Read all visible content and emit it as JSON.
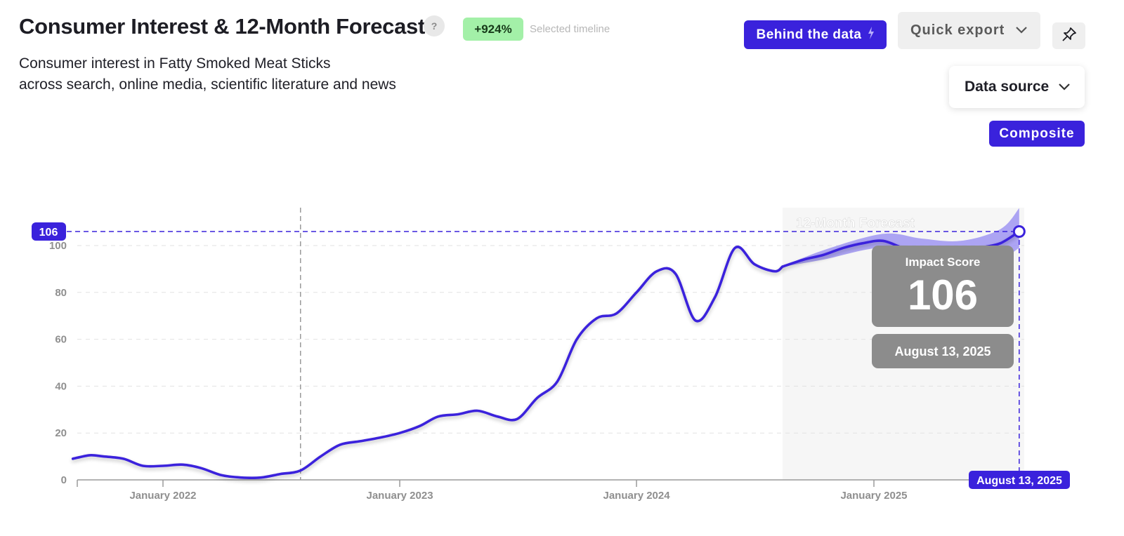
{
  "header": {
    "title": "Consumer Interest & 12-Month Forecast",
    "help": "?",
    "badge": "+924%",
    "badge_note": "Selected timeline",
    "subtitle_line1": "Consumer interest in Fatty Smoked Meat Sticks",
    "subtitle_line2": "across search, online media, scientific literature and news"
  },
  "toolbar": {
    "behind_label": "Behind the data",
    "export_label": "Quick export",
    "data_source_label": "Data source",
    "composite_label": "Composite"
  },
  "colors": {
    "accent": "#3a22dc",
    "badge_bg": "#a3f0a8",
    "forecast_band": "#9f95f2",
    "tooltip_bg": "#8c8c8c"
  },
  "chart_data": {
    "type": "line",
    "title": "",
    "xlabel": "",
    "ylabel": "",
    "ylim": [
      0,
      110
    ],
    "yticks": [
      0,
      20,
      40,
      60,
      80,
      100
    ],
    "xtick_labels": [
      {
        "label": "January 2022",
        "date": "2022-01-01"
      },
      {
        "label": "January 2023",
        "date": "2023-01-01"
      },
      {
        "label": "January 2024",
        "date": "2024-01-01"
      },
      {
        "label": "January 2025",
        "date": "2025-01-01"
      }
    ],
    "grid": true,
    "history_marker_date": "2022-08-01",
    "forecast_label": "12-Month Forecast",
    "forecast_start": "2024-08-13",
    "series": [
      {
        "kind": "actual",
        "points": [
          [
            "2021-08-15",
            9
          ],
          [
            "2021-09-10",
            10.5
          ],
          [
            "2021-10-01",
            10
          ],
          [
            "2021-11-01",
            9
          ],
          [
            "2021-12-01",
            6
          ],
          [
            "2022-01-01",
            6
          ],
          [
            "2022-02-01",
            6.5
          ],
          [
            "2022-03-01",
            5
          ],
          [
            "2022-04-01",
            2
          ],
          [
            "2022-05-01",
            1
          ],
          [
            "2022-06-01",
            1
          ],
          [
            "2022-07-01",
            2.5
          ],
          [
            "2022-08-01",
            4
          ],
          [
            "2022-09-01",
            10
          ],
          [
            "2022-10-01",
            15
          ],
          [
            "2022-11-01",
            16.5
          ],
          [
            "2022-12-01",
            18
          ],
          [
            "2023-01-01",
            20
          ],
          [
            "2023-02-01",
            23
          ],
          [
            "2023-03-01",
            27
          ],
          [
            "2023-04-01",
            28
          ],
          [
            "2023-05-01",
            29.5
          ],
          [
            "2023-06-01",
            27
          ],
          [
            "2023-07-01",
            26
          ],
          [
            "2023-08-01",
            35
          ],
          [
            "2023-09-01",
            42
          ],
          [
            "2023-10-01",
            60
          ],
          [
            "2023-11-01",
            69
          ],
          [
            "2023-12-01",
            71
          ],
          [
            "2024-01-01",
            80
          ],
          [
            "2024-02-01",
            89
          ],
          [
            "2024-03-01",
            88
          ],
          [
            "2024-04-01",
            68
          ],
          [
            "2024-05-01",
            78
          ],
          [
            "2024-06-01",
            99
          ],
          [
            "2024-07-01",
            92
          ],
          [
            "2024-08-01",
            89
          ],
          [
            "2024-08-13",
            91
          ]
        ]
      },
      {
        "kind": "forecast",
        "points": [
          [
            "2024-08-13",
            91
          ],
          [
            "2024-09-15",
            94
          ],
          [
            "2024-10-15",
            96
          ],
          [
            "2024-11-15",
            99
          ],
          [
            "2024-12-15",
            101
          ],
          [
            "2025-01-15",
            102
          ],
          [
            "2025-02-15",
            99
          ],
          [
            "2025-03-15",
            98
          ],
          [
            "2025-04-15",
            96
          ],
          [
            "2025-05-15",
            96
          ],
          [
            "2025-06-15",
            99
          ],
          [
            "2025-07-15",
            101
          ],
          [
            "2025-08-13",
            106
          ]
        ]
      }
    ],
    "forecast_band": {
      "upper": [
        [
          "2024-08-13",
          91
        ],
        [
          "2024-10-15",
          98
        ],
        [
          "2025-01-15",
          105
        ],
        [
          "2025-03-15",
          103
        ],
        [
          "2025-05-15",
          102
        ],
        [
          "2025-07-15",
          107
        ],
        [
          "2025-08-13",
          116
        ]
      ],
      "lower": [
        [
          "2024-08-13",
          91
        ],
        [
          "2024-10-15",
          94
        ],
        [
          "2025-01-15",
          99
        ],
        [
          "2025-03-15",
          93
        ],
        [
          "2025-05-15",
          88
        ],
        [
          "2025-07-15",
          94
        ],
        [
          "2025-08-13",
          99
        ]
      ]
    },
    "highlight": {
      "date": "2025-08-13",
      "value": 106,
      "y_label": "106",
      "x_label": "August 13, 2025"
    },
    "tooltip": {
      "title": "Impact Score",
      "value": "106",
      "date": "August 13, 2025"
    }
  }
}
